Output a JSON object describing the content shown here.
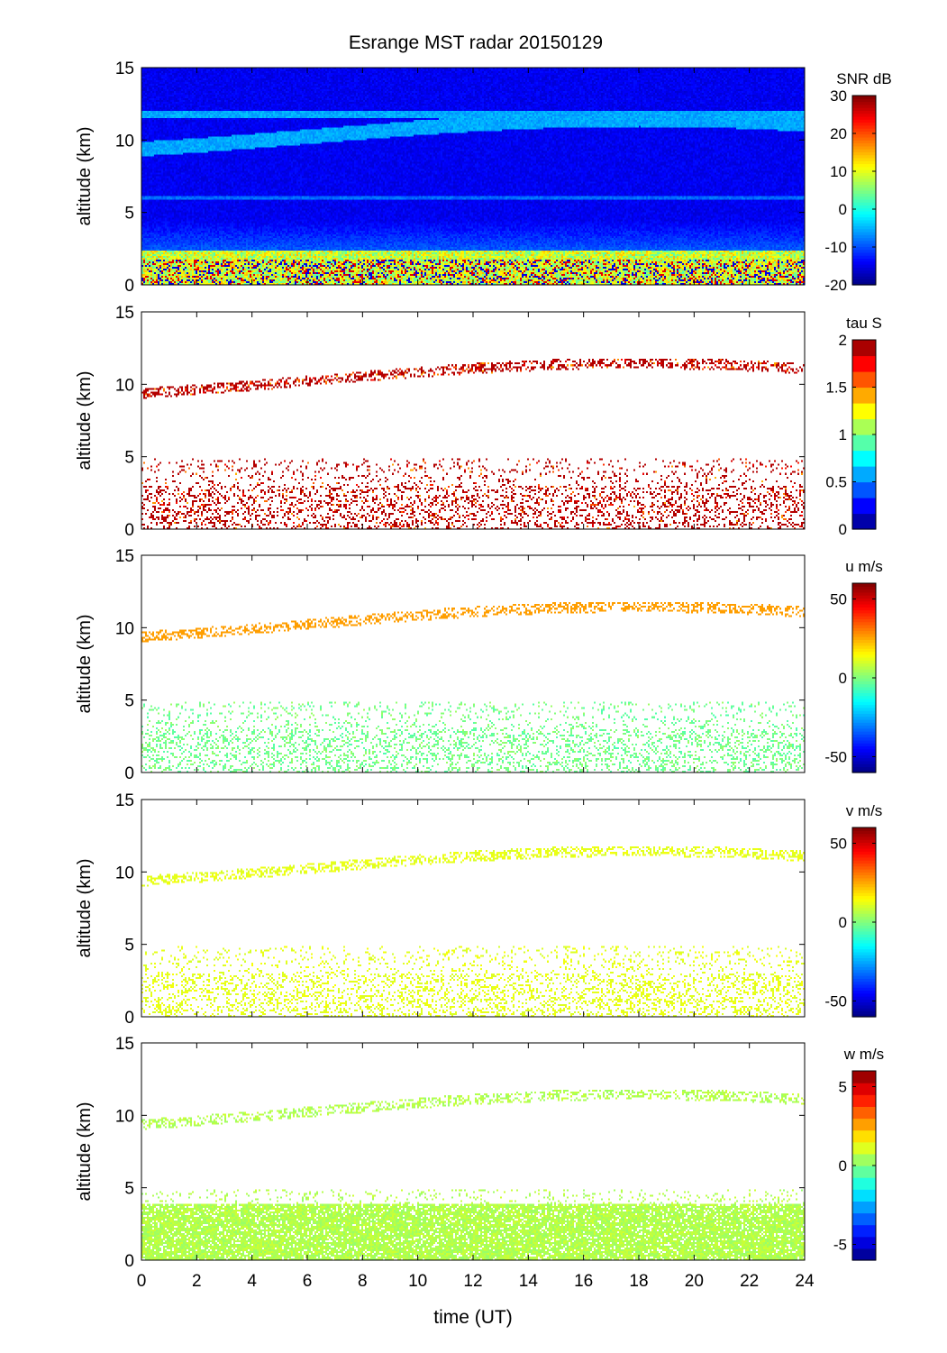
{
  "title": "Esrange MST radar 20150129",
  "xlabel": "time (UT)",
  "chart_data": [
    {
      "type": "heatmap",
      "variable": "SNR",
      "colorbar_label": "SNR dB",
      "colorbar_ticks": [
        30,
        20,
        10,
        0,
        -10,
        -20
      ],
      "color_range": [
        -20,
        30
      ],
      "ylabel": "altitude (km)",
      "y_ticks": [
        0,
        5,
        10,
        15
      ],
      "ylim": [
        0,
        15
      ],
      "xlim": [
        0,
        24
      ],
      "colormap": "jet"
    },
    {
      "type": "heatmap",
      "variable": "tau",
      "colorbar_label": "tau S",
      "colorbar_ticks": [
        "2",
        "1.5",
        "1",
        "0.5",
        "0"
      ],
      "color_range": [
        0,
        2
      ],
      "ylabel": "altitude (km)",
      "y_ticks": [
        0,
        5,
        10,
        15
      ],
      "ylim": [
        0,
        15
      ],
      "xlim": [
        0,
        24
      ],
      "colormap": "jet"
    },
    {
      "type": "heatmap",
      "variable": "u",
      "colorbar_label": "u m/s",
      "colorbar_ticks": [
        50,
        0,
        -50
      ],
      "color_range": [
        -60,
        60
      ],
      "ylabel": "altitude (km)",
      "y_ticks": [
        0,
        5,
        10,
        15
      ],
      "ylim": [
        0,
        15
      ],
      "xlim": [
        0,
        24
      ],
      "colormap": "jet"
    },
    {
      "type": "heatmap",
      "variable": "v",
      "colorbar_label": "v m/s",
      "colorbar_ticks": [
        50,
        0,
        -50
      ],
      "color_range": [
        -60,
        60
      ],
      "ylabel": "altitude (km)",
      "y_ticks": [
        0,
        5,
        10,
        15
      ],
      "ylim": [
        0,
        15
      ],
      "xlim": [
        0,
        24
      ],
      "colormap": "jet"
    },
    {
      "type": "heatmap",
      "variable": "w",
      "colorbar_label": "w m/s",
      "colorbar_ticks": [
        5,
        0,
        -5
      ],
      "color_range": [
        -6,
        6
      ],
      "ylabel": "altitude (km)",
      "y_ticks": [
        0,
        5,
        10,
        15
      ],
      "ylim": [
        0,
        15
      ],
      "xlim": [
        0,
        24
      ],
      "colormap": "jet"
    }
  ],
  "x_ticks": [
    0,
    2,
    4,
    6,
    8,
    10,
    12,
    14,
    16,
    18,
    20,
    22,
    24
  ]
}
